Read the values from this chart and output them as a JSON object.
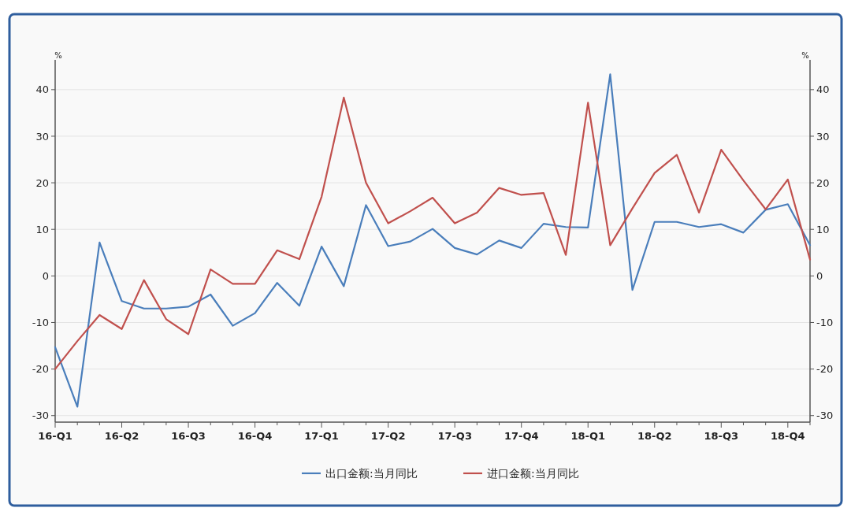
{
  "chart_data": {
    "type": "line",
    "ylabel": "%",
    "y2label": "%",
    "categories": [
      "16-Q1",
      null,
      null,
      "16-Q2",
      null,
      null,
      "16-Q3",
      null,
      null,
      "16-Q4",
      null,
      null,
      "17-Q1",
      null,
      null,
      "17-Q2",
      null,
      null,
      "17-Q3",
      null,
      null,
      "17-Q4",
      null,
      null,
      "18-Q1",
      null,
      null,
      "18-Q2",
      null,
      null,
      "18-Q3",
      null,
      null,
      "18-Q4",
      null
    ],
    "series": [
      {
        "name": "出口金额:当月同比",
        "color": "#4a7ebb",
        "values": [
          -15.3,
          -28.1,
          7.2,
          -5.4,
          -7,
          -7,
          -6.6,
          -4,
          -10.7,
          -8,
          -1.5,
          -6.4,
          6.3,
          -2.2,
          15.2,
          6.4,
          7.4,
          10.1,
          6,
          4.6,
          7.6,
          6,
          11.2,
          10.5,
          10.4,
          43.3,
          -3,
          11.6,
          11.6,
          10.5,
          11.1,
          9.3,
          14.2,
          15.4,
          6.6
        ]
      },
      {
        "name": "进口金额:当月同比",
        "color": "#c0504d",
        "values": [
          -20,
          -14,
          -8.4,
          -11.4,
          -0.9,
          -9.3,
          -12.5,
          1.4,
          -1.7,
          -1.7,
          5.5,
          3.6,
          17,
          38.3,
          20,
          11.3,
          13.9,
          16.8,
          11.3,
          13.6,
          18.9,
          17.4,
          17.8,
          4.5,
          37.2,
          6.6,
          14.5,
          22.1,
          26,
          13.6,
          27.1,
          20.5,
          14.3,
          20.7,
          3.5
        ]
      }
    ],
    "ylim": [
      -31.4,
      46.4
    ],
    "yticks": [
      -30,
      -20,
      -10,
      0,
      10,
      20,
      30,
      40
    ],
    "y2lim": [
      -31.4,
      46.4
    ],
    "y2ticks": [
      -30,
      -20,
      -10,
      0,
      10,
      20,
      30,
      40
    ],
    "grid": "y",
    "legend": "bottom",
    "marker": "none",
    "line_style": "solid"
  }
}
